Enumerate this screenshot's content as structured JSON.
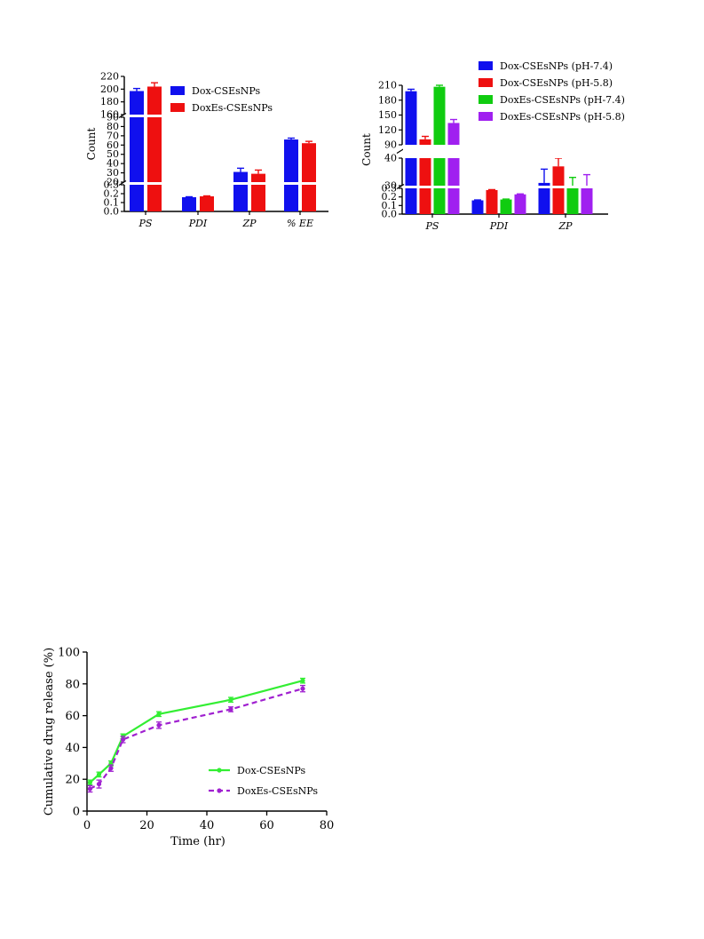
{
  "chart_data": [
    {
      "type": "bar",
      "ylabel": "Count",
      "xlabel": "",
      "categories": [
        "PS",
        "PDI",
        "ZP",
        "% EE"
      ],
      "series": [
        {
          "name": "Dox-CSEsNPs",
          "color": "#1010ee",
          "values": [
            197,
            0.16,
            31,
            66
          ],
          "errors": [
            4,
            0.005,
            4,
            1.5
          ]
        },
        {
          "name": "DoxEs-CSEsNPs",
          "color": "#ee1010",
          "values": [
            204,
            0.17,
            29,
            62
          ],
          "errors": [
            6,
            0.005,
            4,
            2
          ]
        }
      ],
      "broken_axis_segments": [
        {
          "range": [
            0.0,
            0.3
          ],
          "ticks": [
            "0.0",
            "0.1",
            "0.2",
            "0.3"
          ]
        },
        {
          "range": [
            20,
            90
          ],
          "ticks": [
            "20",
            "30",
            "40",
            "50",
            "60",
            "70",
            "80",
            "90"
          ]
        },
        {
          "range": [
            160,
            220
          ],
          "ticks": [
            "160",
            "180",
            "200",
            "220"
          ]
        }
      ],
      "legend_position": "top-right"
    },
    {
      "type": "bar",
      "ylabel": "Count",
      "xlabel": "",
      "categories": [
        "PS",
        "PDI",
        "ZP"
      ],
      "series": [
        {
          "name": "Dox-CSEsNPs (pH-7.4)",
          "color": "#1010ee",
          "values": [
            198,
            0.16,
            31
          ],
          "errors": [
            4,
            0.005,
            5
          ]
        },
        {
          "name": "Dox-CSEsNPs (pH-5.8)",
          "color": "#ee1010",
          "values": [
            101,
            0.28,
            37
          ],
          "errors": [
            6,
            0.005,
            4
          ]
        },
        {
          "name": "DoxEs-CSEsNPs (pH-7.4)",
          "color": "#10cc10",
          "values": [
            207,
            0.17,
            29
          ],
          "errors": [
            4,
            0.005,
            4
          ]
        },
        {
          "name": "DoxEs-CSEsNPs (pH-5.8)",
          "color": "#a020f0",
          "values": [
            134,
            0.23,
            30
          ],
          "errors": [
            7,
            0.005,
            4
          ]
        }
      ],
      "broken_axis_segments": [
        {
          "range": [
            0.0,
            0.3
          ],
          "ticks": [
            "0.0",
            "0.1",
            "0.2",
            "0.3"
          ]
        },
        {
          "range": [
            30,
            40
          ],
          "ticks": [
            "30",
            "40"
          ]
        },
        {
          "range": [
            90,
            210
          ],
          "ticks": [
            "90",
            "120",
            "150",
            "180",
            "210"
          ]
        }
      ],
      "legend_position": "top"
    },
    {
      "type": "line",
      "xlabel": "Time (hr)",
      "ylabel": "Cumulative drug release (%)",
      "xlim": [
        0,
        80
      ],
      "ylim": [
        0,
        100
      ],
      "xticks": [
        0,
        20,
        40,
        60,
        80
      ],
      "yticks": [
        0,
        20,
        40,
        60,
        80,
        100
      ],
      "series": [
        {
          "name": "Dox-CSEsNPs",
          "color": "#33ee33",
          "style": "solid",
          "x": [
            1,
            4,
            8,
            12,
            24,
            48,
            72
          ],
          "y": [
            18,
            23,
            30,
            47,
            61,
            70,
            82
          ],
          "errors": [
            1.5,
            1.5,
            1.5,
            1.5,
            1.5,
            1.5,
            1.5
          ]
        },
        {
          "name": "DoxEs-CSEsNPs",
          "color": "#a020d0",
          "style": "dashed",
          "x": [
            1,
            4,
            8,
            12,
            24,
            48,
            72
          ],
          "y": [
            14,
            17,
            27,
            45,
            54,
            64,
            77
          ],
          "errors": [
            2,
            2.5,
            2,
            2,
            2,
            1.5,
            2
          ]
        }
      ],
      "legend_position": "bottom-right"
    }
  ]
}
